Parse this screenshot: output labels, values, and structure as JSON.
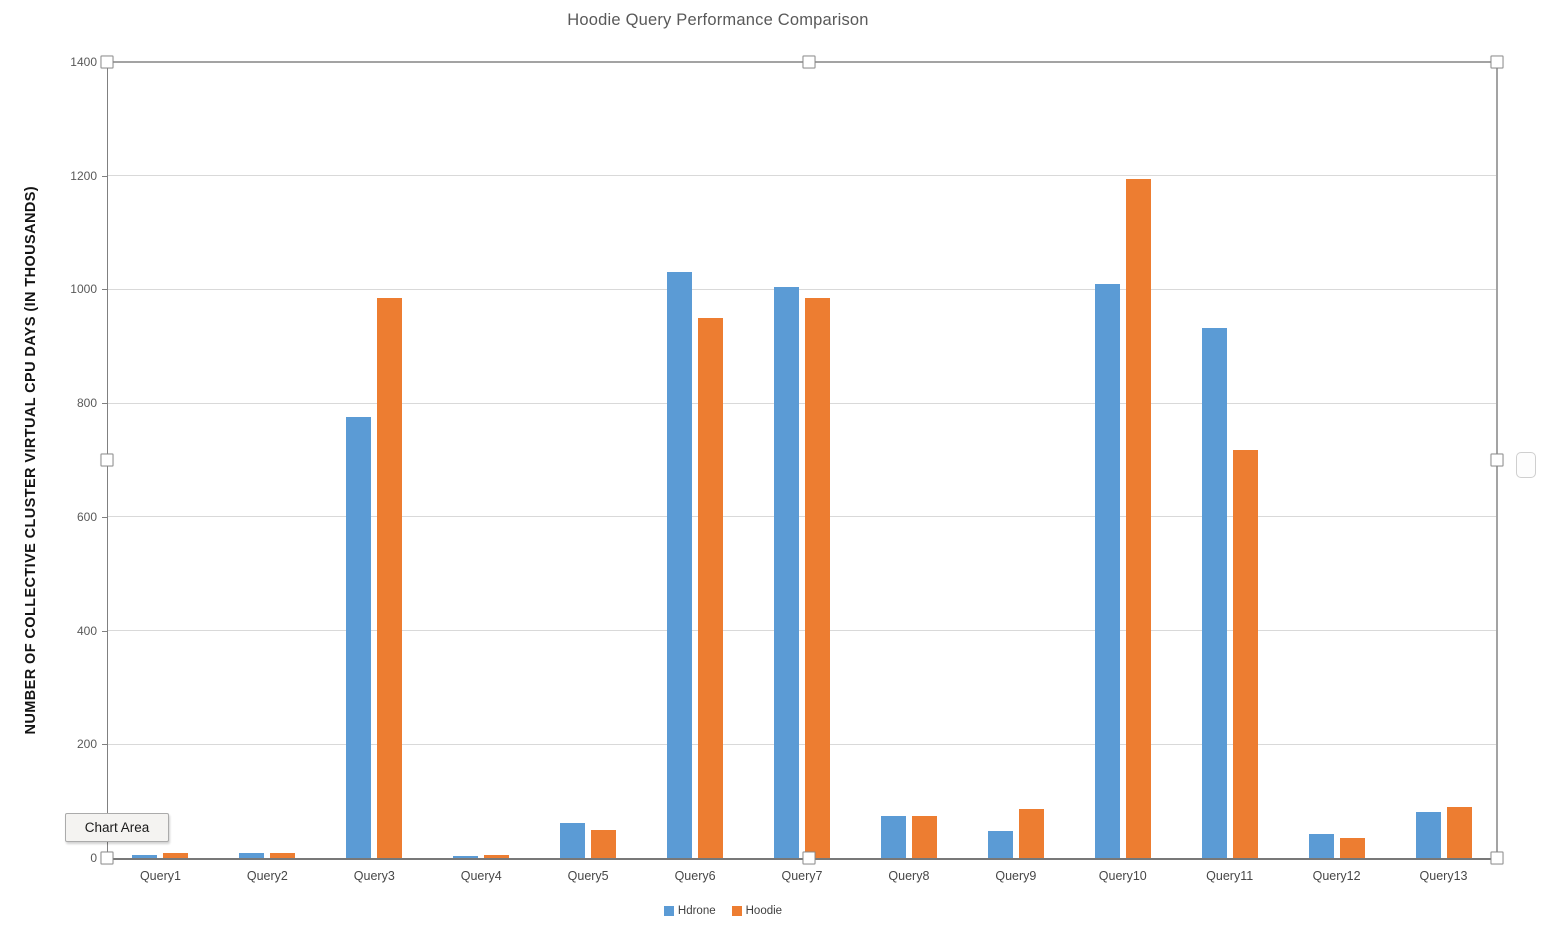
{
  "tooltip": {
    "label": "Chart Area"
  },
  "chart_data": {
    "type": "bar",
    "title": "Hoodie Query Performance Comparison",
    "ylabel": "NUMBER OF COLLECTIVE CLUSTER VIRTUAL CPU DAYS (IN THOUSANDS)",
    "xlabel": "",
    "categories": [
      "Query1",
      "Query2",
      "Query3",
      "Query4",
      "Query5",
      "Query6",
      "Query7",
      "Query8",
      "Query9",
      "Query10",
      "Query11",
      "Query12",
      "Query13"
    ],
    "series": [
      {
        "name": "Hdrone",
        "color": "#5B9BD5",
        "values": [
          5,
          8,
          775,
          4,
          62,
          1030,
          1005,
          74,
          48,
          1009,
          933,
          42,
          81
        ]
      },
      {
        "name": "Hoodie",
        "color": "#ED7D31",
        "values": [
          9,
          9,
          985,
          5,
          50,
          950,
          985,
          74,
          86,
          1194,
          717,
          35,
          90
        ]
      }
    ],
    "ylim": [
      0,
      1400
    ],
    "yticks": [
      0,
      200,
      400,
      600,
      800,
      1000,
      1200,
      1400
    ],
    "grid": true,
    "legend_position": "bottom"
  },
  "colors": {
    "series_hdrone": "#5B9BD5",
    "series_hoodie": "#ED7D31",
    "gridline": "#d9d9d9",
    "axis": "#808080",
    "title_text": "#595959",
    "selection": "#a3a3a3"
  }
}
